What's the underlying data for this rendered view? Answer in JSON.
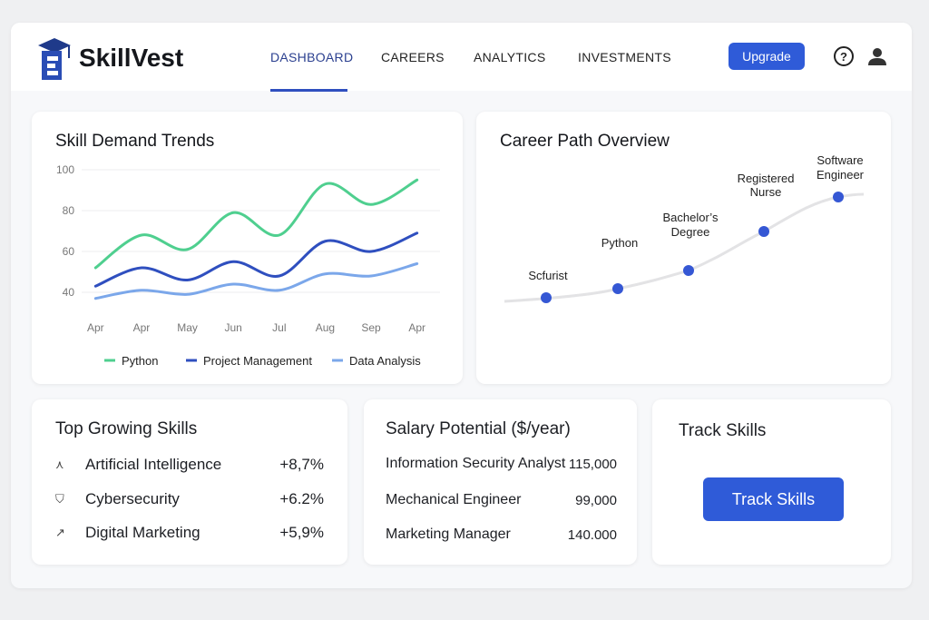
{
  "header": {
    "brand": "SkillVest",
    "nav": [
      "DASHBOARD",
      "CAREERS",
      "ANALYTICS",
      "INVESTMENTS"
    ],
    "active": 0,
    "upgrade": "Upgrade"
  },
  "chart_data": [
    {
      "type": "line",
      "title": "Skill Demand Trends",
      "categories": [
        "Apr",
        "Apr",
        "May",
        "Jun",
        "Jul",
        "Aug",
        "Sep",
        "Apr"
      ],
      "series": [
        {
          "name": "Python",
          "color": "#4fcf8f",
          "values": [
            52,
            68,
            61,
            79,
            68,
            93,
            83,
            95
          ]
        },
        {
          "name": "Project Management",
          "color": "#2f4fbf",
          "values": [
            43,
            52,
            46,
            55,
            48,
            65,
            60,
            69
          ]
        },
        {
          "name": "Data Analysis",
          "color": "#7ba7ea",
          "values": [
            37,
            41,
            39,
            44,
            41,
            49,
            48,
            54
          ]
        }
      ],
      "ylim": [
        30,
        100
      ],
      "yticks": [
        40,
        60,
        80,
        100
      ],
      "grid": true,
      "legend": "bottom"
    }
  ],
  "career_path": {
    "title": "Career Path Overview",
    "nodes": [
      {
        "label": [
          "Scfurist"
        ]
      },
      {
        "label": [
          "Python"
        ]
      },
      {
        "label": [
          "Bachelor’s",
          "Degree"
        ]
      },
      {
        "label": [
          "Registered",
          "Nurse"
        ]
      },
      {
        "label": [
          "Software",
          "Engineer"
        ]
      }
    ]
  },
  "top_skills": {
    "title": "Top Growing Skills",
    "rows": [
      {
        "name": "Artificial Intelligence",
        "change": "+8,7%"
      },
      {
        "name": "Cybersecurity",
        "change": "+6.2%"
      },
      {
        "name": "Digital Marketing",
        "change": "+5,9%"
      }
    ]
  },
  "salary": {
    "title": "Salary Potential ($/year)",
    "rows": [
      {
        "role": "Information Security Analyst",
        "salary": "115,000"
      },
      {
        "role": "Mechanical Engineer",
        "salary": "99,000"
      },
      {
        "role": "Marketing Manager",
        "salary": "140.000"
      }
    ]
  },
  "track": {
    "title": "Track Skills",
    "button": "Track Skills"
  }
}
